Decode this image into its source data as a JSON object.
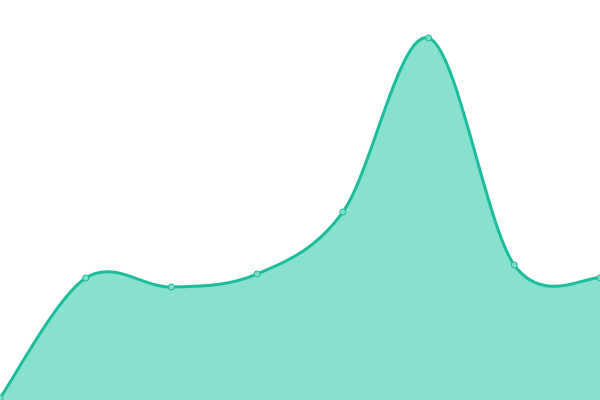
{
  "chart_data": {
    "type": "area",
    "x": [
      0,
      1,
      2,
      3,
      4,
      5,
      6,
      7
    ],
    "values": [
      2,
      122,
      113,
      126,
      188,
      362,
      135,
      122
    ],
    "ylim": [
      0,
      400
    ],
    "grid": false,
    "smooth": true,
    "colors": {
      "line": "#1abc9c",
      "fill": "#88e0cf",
      "point": "#7fdcc8"
    }
  }
}
